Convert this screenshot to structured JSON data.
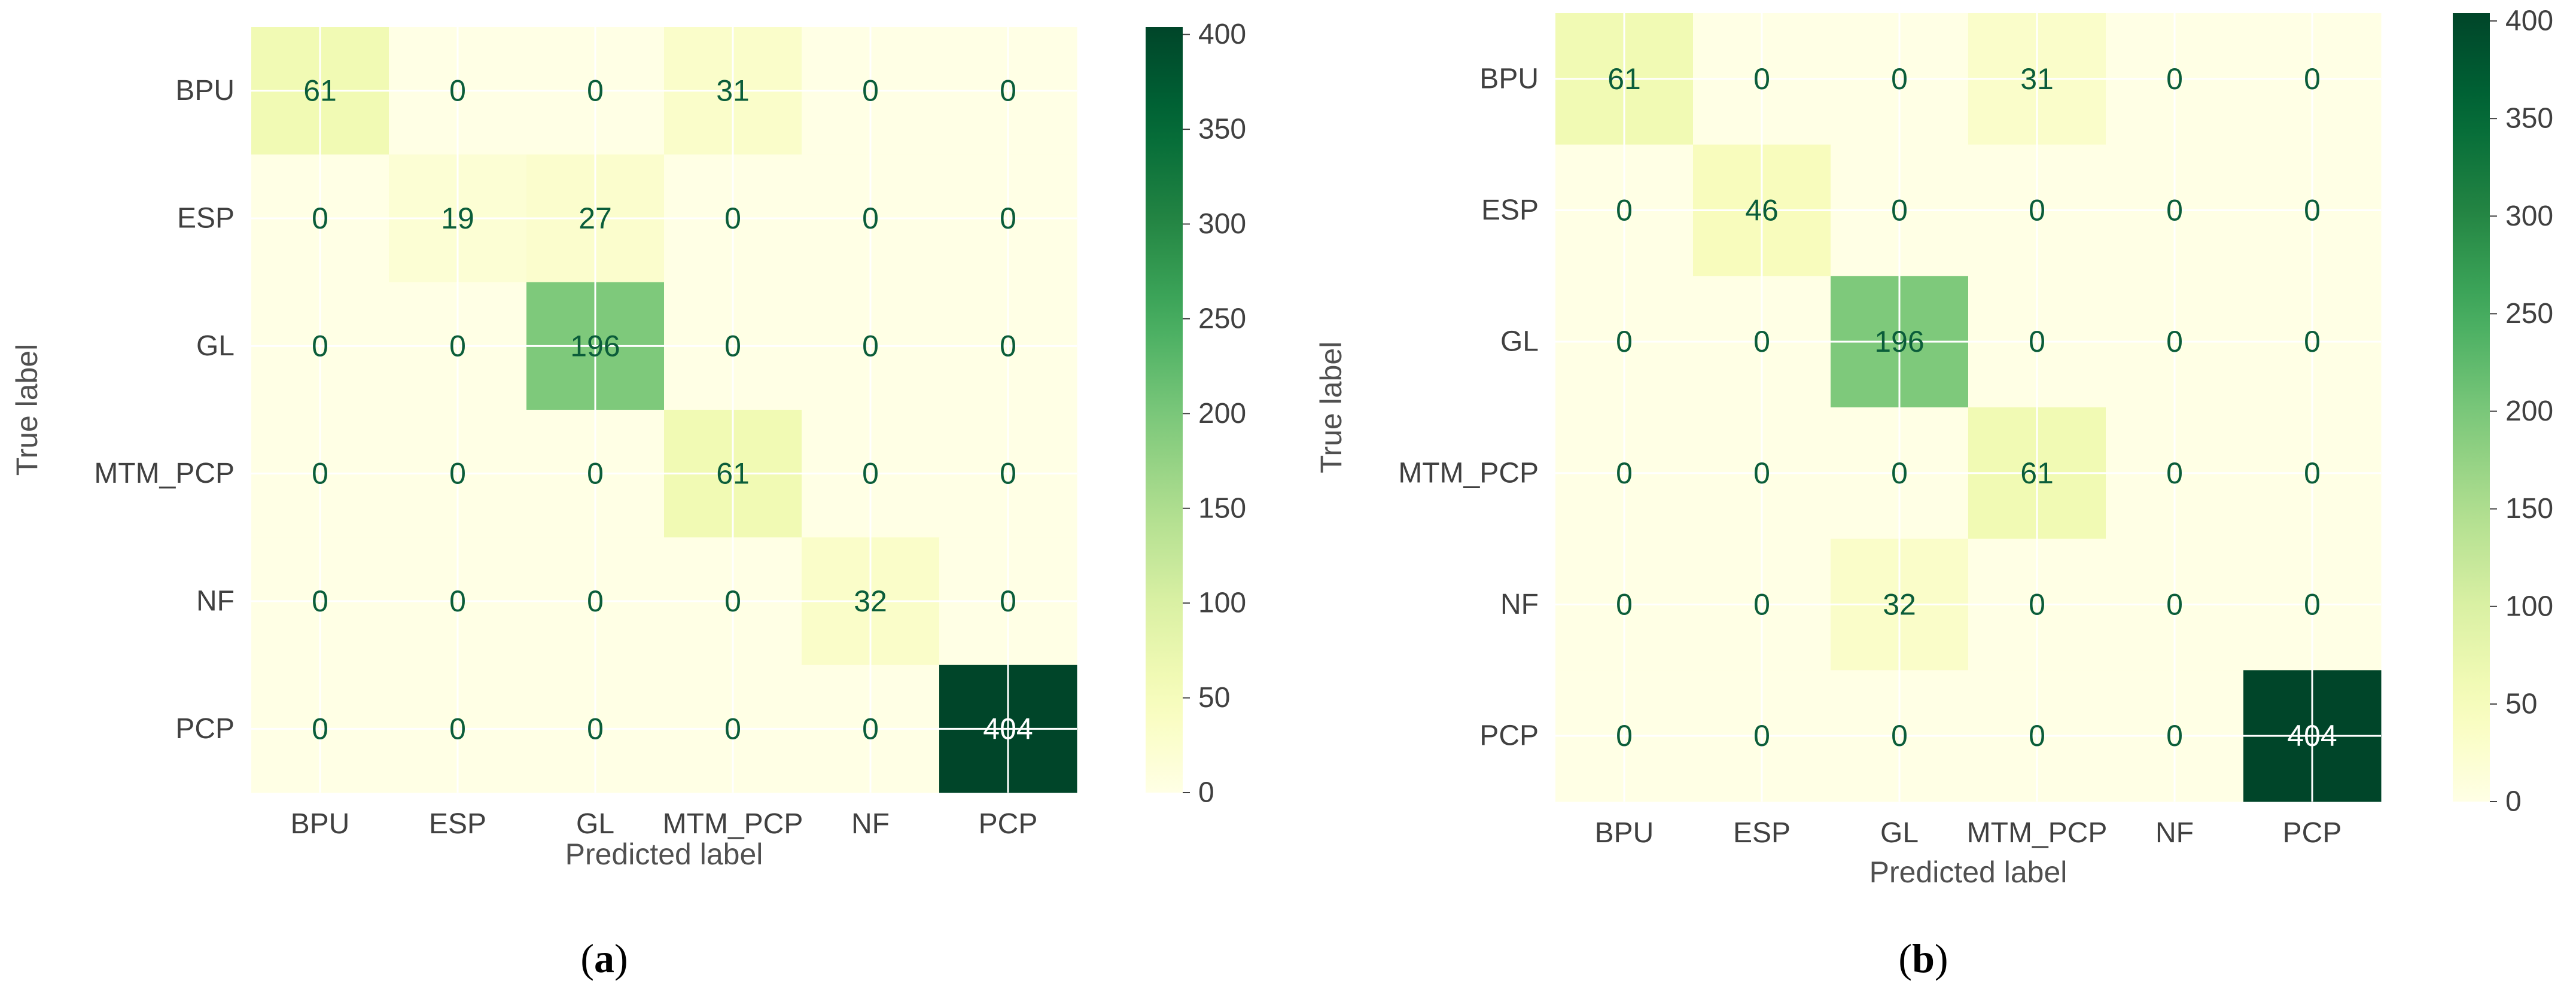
{
  "colormap": {
    "name": "YlGn",
    "stops": [
      "#ffffe5",
      "#f7fcb9",
      "#d9f0a3",
      "#addd8e",
      "#78c679",
      "#41ab5d",
      "#238443",
      "#006837",
      "#004529"
    ],
    "text_color": "#0b5d3a",
    "text_color_dark_cells": "#ffffff"
  },
  "chart_data": [
    {
      "type": "heatmap",
      "panel_label_open": "(",
      "panel_label_letter": "a",
      "panel_label_close": ")",
      "xlabel": "Predicted label",
      "ylabel": "True label",
      "x_categories": [
        "BPU",
        "ESP",
        "GL",
        "MTM_PCP",
        "NF",
        "PCP"
      ],
      "y_categories": [
        "BPU",
        "ESP",
        "GL",
        "MTM_PCP",
        "NF",
        "PCP"
      ],
      "values": [
        [
          61,
          0,
          0,
          31,
          0,
          0
        ],
        [
          0,
          19,
          27,
          0,
          0,
          0
        ],
        [
          0,
          0,
          196,
          0,
          0,
          0
        ],
        [
          0,
          0,
          0,
          61,
          0,
          0
        ],
        [
          0,
          0,
          0,
          0,
          32,
          0
        ],
        [
          0,
          0,
          0,
          0,
          0,
          404
        ]
      ],
      "vmin": 0,
      "vmax": 404,
      "colorbar_ticks": [
        "0",
        "50",
        "100",
        "150",
        "200",
        "250",
        "300",
        "350",
        "400"
      ],
      "grid": true
    },
    {
      "type": "heatmap",
      "panel_label_open": "(",
      "panel_label_letter": "b",
      "panel_label_close": ")",
      "xlabel": "Predicted label",
      "ylabel": "True label",
      "x_categories": [
        "BPU",
        "ESP",
        "GL",
        "MTM_PCP",
        "NF",
        "PCP"
      ],
      "y_categories": [
        "BPU",
        "ESP",
        "GL",
        "MTM_PCP",
        "NF",
        "PCP"
      ],
      "values": [
        [
          61,
          0,
          0,
          31,
          0,
          0
        ],
        [
          0,
          46,
          0,
          0,
          0,
          0
        ],
        [
          0,
          0,
          196,
          0,
          0,
          0
        ],
        [
          0,
          0,
          0,
          61,
          0,
          0
        ],
        [
          0,
          0,
          32,
          0,
          0,
          0
        ],
        [
          0,
          0,
          0,
          0,
          0,
          404
        ]
      ],
      "vmin": 0,
      "vmax": 404,
      "colorbar_ticks": [
        "0",
        "50",
        "100",
        "150",
        "200",
        "250",
        "300",
        "350",
        "400"
      ],
      "grid": true
    }
  ]
}
